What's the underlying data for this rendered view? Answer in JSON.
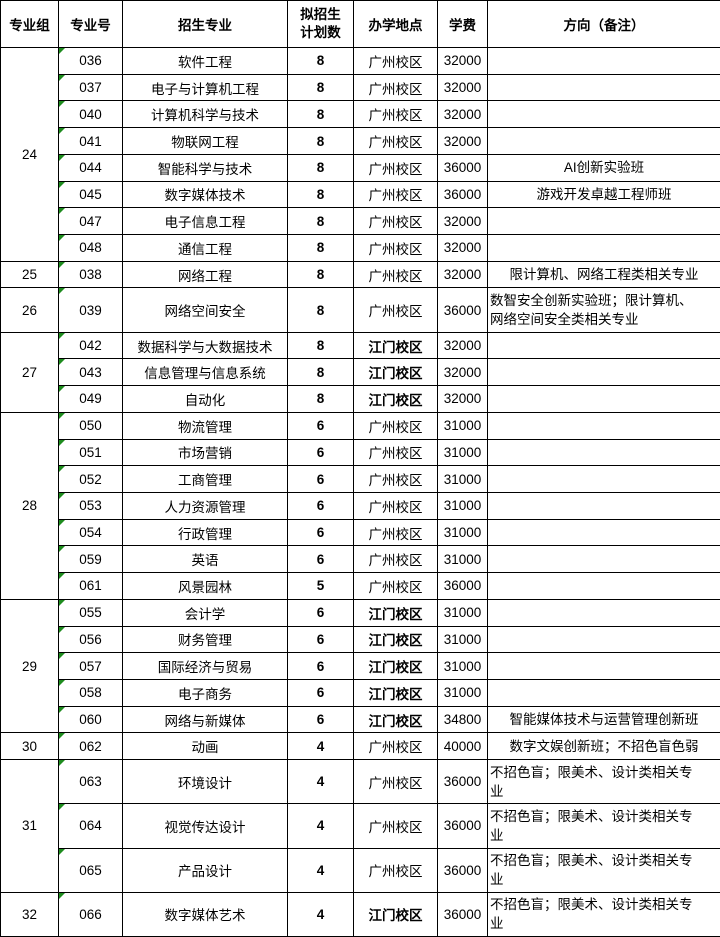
{
  "colors": {
    "background": "#ffffff",
    "text": "#000000",
    "border": "#000000",
    "indicator_green": "#1e8c1e"
  },
  "table": {
    "headers": [
      "专业组",
      "专业号",
      "招生专业",
      "拟招生\n计划数",
      "办学地点",
      "学费",
      "方向（备注）"
    ],
    "groups": [
      {
        "group": "24",
        "rows": [
          {
            "major_no": "036",
            "major": "软件工程",
            "plan": "8",
            "campus": "广州校区",
            "tuition": "32000",
            "remark": ""
          },
          {
            "major_no": "037",
            "major": "电子与计算机工程",
            "plan": "8",
            "campus": "广州校区",
            "tuition": "32000",
            "remark": ""
          },
          {
            "major_no": "040",
            "major": "计算机科学与技术",
            "plan": "8",
            "campus": "广州校区",
            "tuition": "32000",
            "remark": ""
          },
          {
            "major_no": "041",
            "major": "物联网工程",
            "plan": "8",
            "campus": "广州校区",
            "tuition": "32000",
            "remark": ""
          },
          {
            "major_no": "044",
            "major": "智能科学与技术",
            "plan": "8",
            "campus": "广州校区",
            "tuition": "36000",
            "remark": "AI创新实验班"
          },
          {
            "major_no": "045",
            "major": "数字媒体技术",
            "plan": "8",
            "campus": "广州校区",
            "tuition": "36000",
            "remark": "游戏开发卓越工程师班"
          },
          {
            "major_no": "047",
            "major": "电子信息工程",
            "plan": "8",
            "campus": "广州校区",
            "tuition": "32000",
            "remark": ""
          },
          {
            "major_no": "048",
            "major": "通信工程",
            "plan": "8",
            "campus": "广州校区",
            "tuition": "32000",
            "remark": ""
          }
        ]
      },
      {
        "group": "25",
        "rows": [
          {
            "major_no": "038",
            "major": "网络工程",
            "plan": "8",
            "campus": "广州校区",
            "tuition": "32000",
            "remark": "限计算机、网络工程类相关专业"
          }
        ]
      },
      {
        "group": "26",
        "rows": [
          {
            "major_no": "039",
            "major": "网络空间安全",
            "plan": "8",
            "campus": "广州校区",
            "tuition": "36000",
            "remark": "数智安全创新实验班；限计算机、网络空间安全类相关专业"
          }
        ]
      },
      {
        "group": "27",
        "rows": [
          {
            "major_no": "042",
            "major": "数据科学与大数据技术",
            "plan": "8",
            "campus": "江门校区",
            "tuition": "32000",
            "remark": ""
          },
          {
            "major_no": "043",
            "major": "信息管理与信息系统",
            "plan": "8",
            "campus": "江门校区",
            "tuition": "32000",
            "remark": ""
          },
          {
            "major_no": "049",
            "major": "自动化",
            "plan": "8",
            "campus": "江门校区",
            "tuition": "32000",
            "remark": ""
          }
        ]
      },
      {
        "group": "28",
        "rows": [
          {
            "major_no": "050",
            "major": "物流管理",
            "plan": "6",
            "campus": "广州校区",
            "tuition": "31000",
            "remark": ""
          },
          {
            "major_no": "051",
            "major": "市场营销",
            "plan": "6",
            "campus": "广州校区",
            "tuition": "31000",
            "remark": ""
          },
          {
            "major_no": "052",
            "major": "工商管理",
            "plan": "6",
            "campus": "广州校区",
            "tuition": "31000",
            "remark": ""
          },
          {
            "major_no": "053",
            "major": "人力资源管理",
            "plan": "6",
            "campus": "广州校区",
            "tuition": "31000",
            "remark": ""
          },
          {
            "major_no": "054",
            "major": "行政管理",
            "plan": "6",
            "campus": "广州校区",
            "tuition": "31000",
            "remark": ""
          },
          {
            "major_no": "059",
            "major": "英语",
            "plan": "6",
            "campus": "广州校区",
            "tuition": "31000",
            "remark": ""
          },
          {
            "major_no": "061",
            "major": "风景园林",
            "plan": "5",
            "campus": "广州校区",
            "tuition": "36000",
            "remark": ""
          }
        ]
      },
      {
        "group": "29",
        "rows": [
          {
            "major_no": "055",
            "major": "会计学",
            "plan": "6",
            "campus": "江门校区",
            "tuition": "31000",
            "remark": ""
          },
          {
            "major_no": "056",
            "major": "财务管理",
            "plan": "6",
            "campus": "江门校区",
            "tuition": "31000",
            "remark": ""
          },
          {
            "major_no": "057",
            "major": "国际经济与贸易",
            "plan": "6",
            "campus": "江门校区",
            "tuition": "31000",
            "remark": ""
          },
          {
            "major_no": "058",
            "major": "电子商务",
            "plan": "6",
            "campus": "江门校区",
            "tuition": "31000",
            "remark": ""
          },
          {
            "major_no": "060",
            "major": "网络与新媒体",
            "plan": "6",
            "campus": "江门校区",
            "tuition": "34800",
            "remark": "智能媒体技术与运营管理创新班"
          }
        ]
      },
      {
        "group": "30",
        "rows": [
          {
            "major_no": "062",
            "major": "动画",
            "plan": "4",
            "campus": "广州校区",
            "tuition": "40000",
            "remark": "数字文娱创新班；不招色盲色弱"
          }
        ]
      },
      {
        "group": "31",
        "rows": [
          {
            "major_no": "063",
            "major": "环境设计",
            "plan": "4",
            "campus": "广州校区",
            "tuition": "36000",
            "remark": "不招色盲；限美术、设计类相关专业"
          },
          {
            "major_no": "064",
            "major": "视觉传达设计",
            "plan": "4",
            "campus": "广州校区",
            "tuition": "36000",
            "remark": "不招色盲；限美术、设计类相关专业"
          },
          {
            "major_no": "065",
            "major": "产品设计",
            "plan": "4",
            "campus": "广州校区",
            "tuition": "36000",
            "remark": "不招色盲；限美术、设计类相关专业"
          }
        ]
      },
      {
        "group": "32",
        "rows": [
          {
            "major_no": "066",
            "major": "数字媒体艺术",
            "plan": "4",
            "campus": "江门校区",
            "tuition": "36000",
            "remark": "不招色盲；限美术、设计类相关专业"
          }
        ]
      }
    ]
  }
}
